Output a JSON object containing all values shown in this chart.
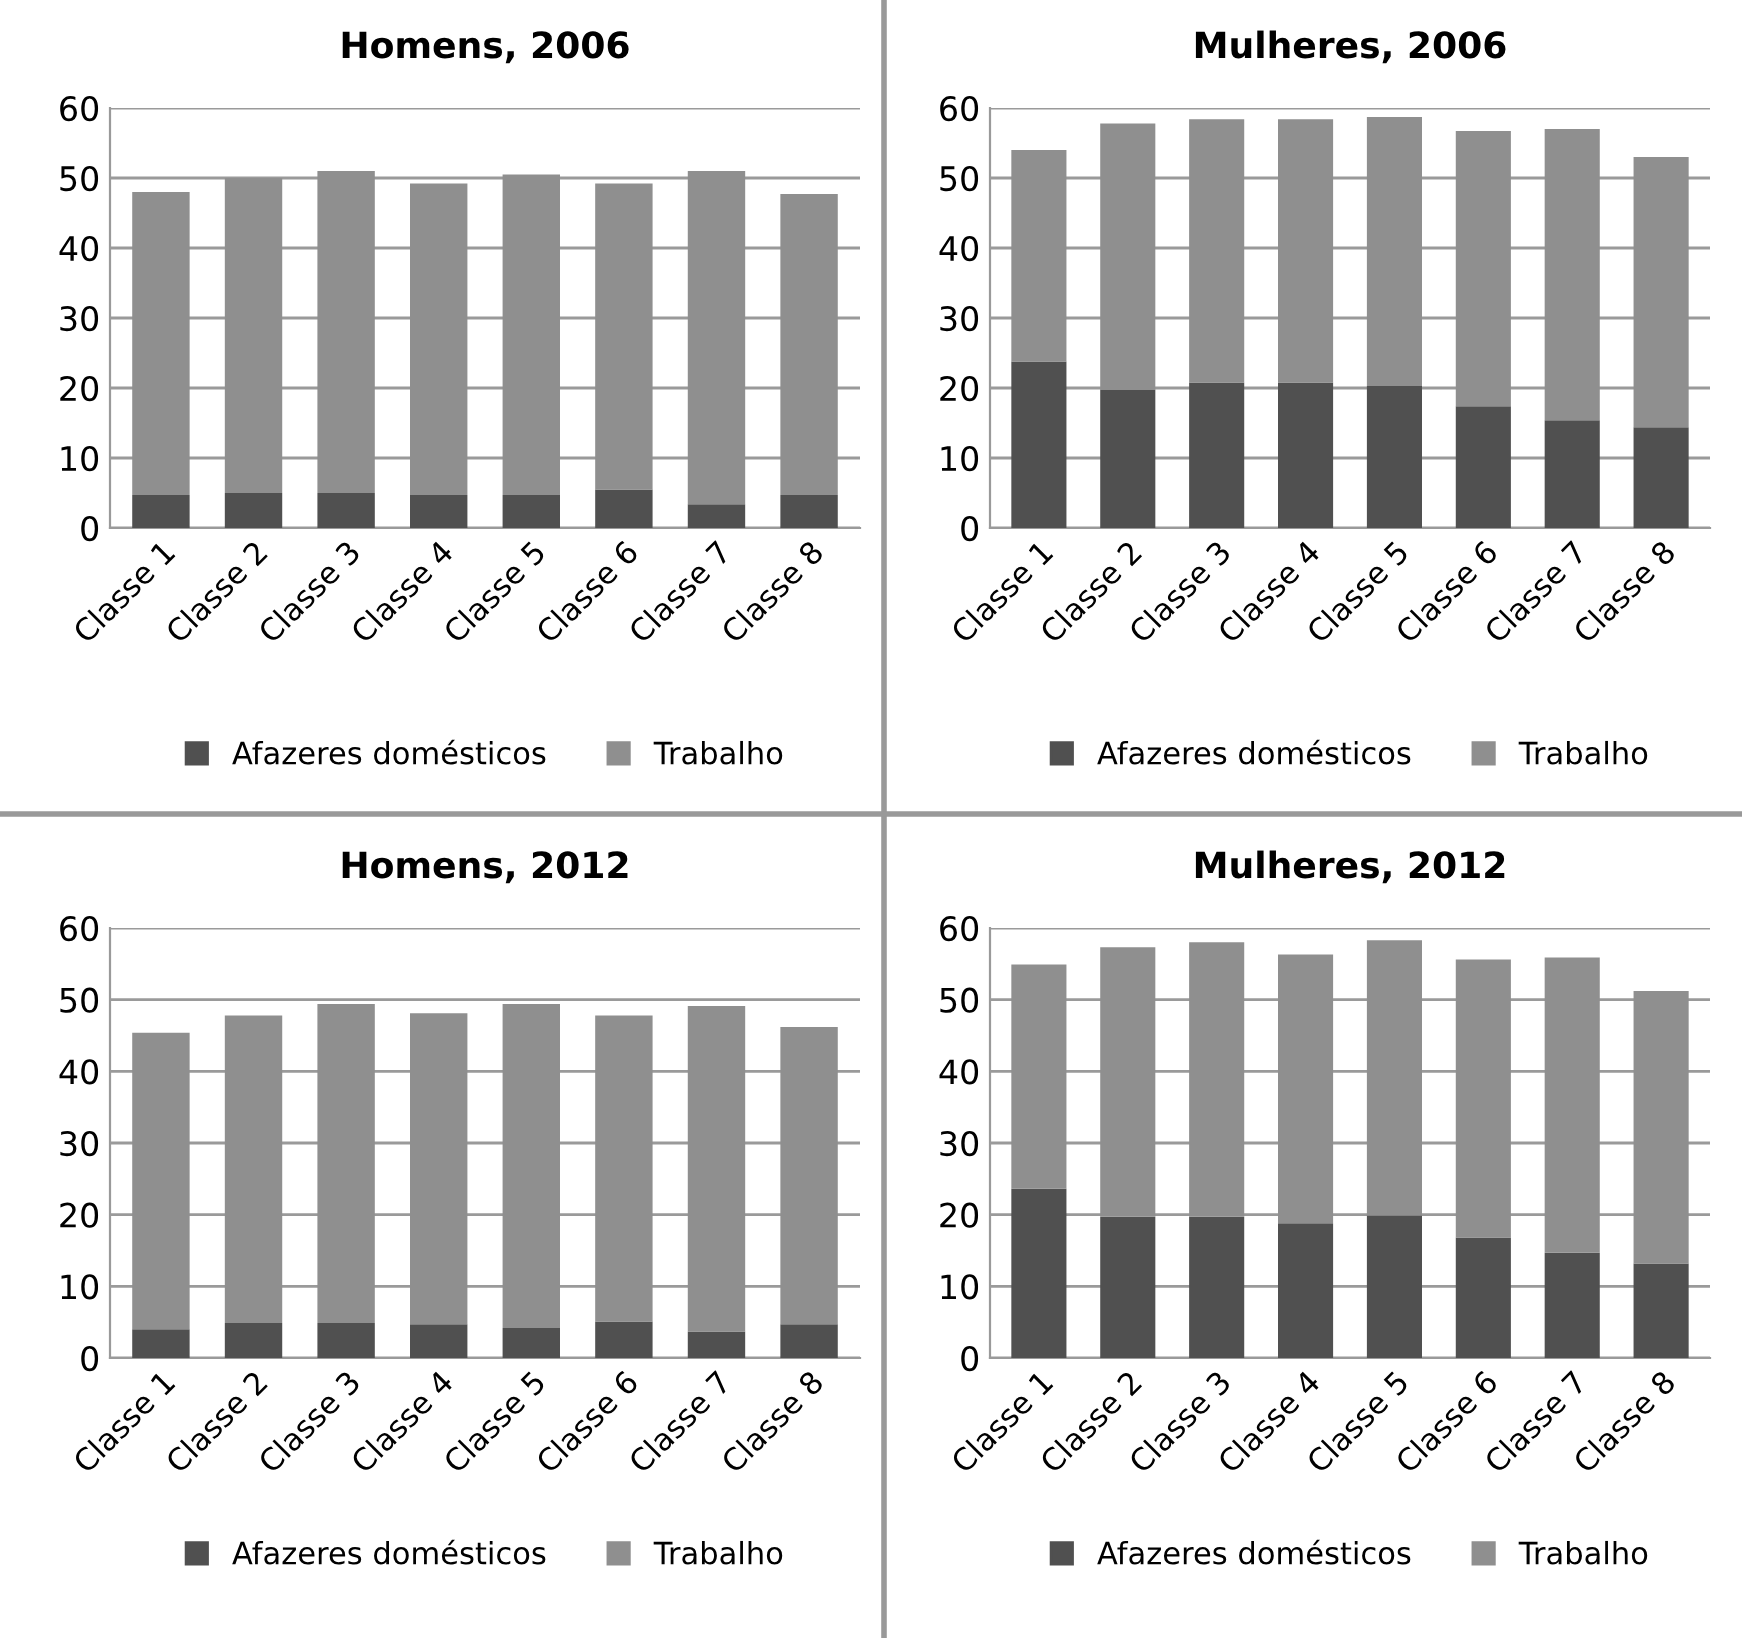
{
  "chart_data": [
    {
      "type": "bar",
      "title": "Homens, 2006",
      "stacked": true,
      "categories": [
        "Classe 1",
        "Classe 2",
        "Classe 3",
        "Classe 4",
        "Classe 5",
        "Classe 6",
        "Classe 7",
        "Classe 8"
      ],
      "ylim": [
        0,
        60
      ],
      "yticks": [
        0,
        10,
        20,
        30,
        40,
        50,
        60
      ],
      "grid": "y",
      "legend": "bottom",
      "series": [
        {
          "name": "Afazeres domésticos",
          "color": "#505050",
          "values": [
            4.7,
            5.0,
            5.0,
            4.7,
            4.7,
            5.5,
            3.4,
            4.7
          ]
        },
        {
          "name": "Trabalho",
          "color": "#8f8f8f",
          "values": [
            43.3,
            45.0,
            46.0,
            44.5,
            45.8,
            43.7,
            47.6,
            43.0
          ]
        }
      ]
    },
    {
      "type": "bar",
      "title": "Mulheres, 2006",
      "stacked": true,
      "categories": [
        "Classe 1",
        "Classe 2",
        "Classe 3",
        "Classe 4",
        "Classe 5",
        "Classe 6",
        "Classe 7",
        "Classe 8"
      ],
      "ylim": [
        0,
        60
      ],
      "yticks": [
        0,
        10,
        20,
        30,
        40,
        50,
        60
      ],
      "grid": "y",
      "legend": "bottom",
      "series": [
        {
          "name": "Afazeres domésticos",
          "color": "#505050",
          "values": [
            23.8,
            19.8,
            20.8,
            20.8,
            20.3,
            17.4,
            15.4,
            14.4
          ]
        },
        {
          "name": "Trabalho",
          "color": "#8f8f8f",
          "values": [
            30.2,
            38.0,
            37.6,
            37.6,
            38.4,
            39.3,
            41.6,
            38.6
          ]
        }
      ]
    },
    {
      "type": "bar",
      "title": "Homens, 2012",
      "stacked": true,
      "categories": [
        "Classe 1",
        "Classe 2",
        "Classe 3",
        "Classe 4",
        "Classe 5",
        "Classe 6",
        "Classe 7",
        "Classe 8"
      ],
      "ylim": [
        0,
        60
      ],
      "yticks": [
        0,
        10,
        20,
        30,
        40,
        50,
        60
      ],
      "grid": "y",
      "legend": "bottom",
      "series": [
        {
          "name": "Afazeres domésticos",
          "color": "#505050",
          "values": [
            4.0,
            4.9,
            4.9,
            4.7,
            4.2,
            5.1,
            3.7,
            4.7
          ]
        },
        {
          "name": "Trabalho",
          "color": "#8f8f8f",
          "values": [
            41.4,
            42.9,
            44.5,
            43.4,
            45.2,
            42.7,
            45.4,
            41.5
          ]
        }
      ]
    },
    {
      "type": "bar",
      "title": "Mulheres, 2012",
      "stacked": true,
      "categories": [
        "Classe 1",
        "Classe 2",
        "Classe 3",
        "Classe 4",
        "Classe 5",
        "Classe 6",
        "Classe 7",
        "Classe 8"
      ],
      "ylim": [
        0,
        60
      ],
      "yticks": [
        0,
        10,
        20,
        30,
        40,
        50,
        60
      ],
      "grid": "y",
      "legend": "bottom",
      "series": [
        {
          "name": "Afazeres domésticos",
          "color": "#505050",
          "values": [
            23.6,
            19.7,
            19.7,
            18.8,
            19.9,
            16.8,
            14.7,
            13.2
          ]
        },
        {
          "name": "Trabalho",
          "color": "#8f8f8f",
          "values": [
            31.3,
            37.6,
            38.3,
            37.5,
            38.4,
            38.8,
            41.2,
            38.0
          ]
        }
      ]
    }
  ]
}
